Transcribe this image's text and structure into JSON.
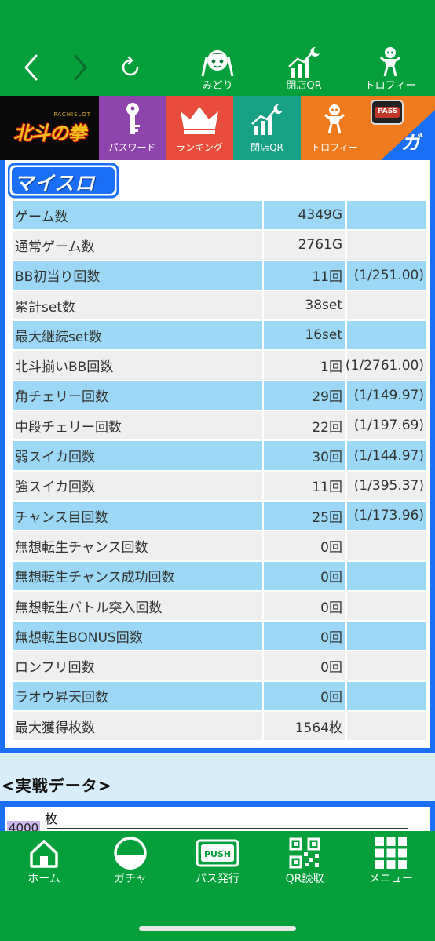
{
  "top_nav": {
    "items": [
      {
        "label": "みどり",
        "icon": "character-icon"
      },
      {
        "label": "閉店QR",
        "icon": "chart-moon-icon"
      },
      {
        "label": "トロフィー",
        "icon": "trophy-icon"
      }
    ]
  },
  "menu": {
    "banner_logo": "北斗の拳",
    "banner_sub": "PACHISLOT",
    "tiles": [
      {
        "label": "パスワード",
        "icon": "key-icon",
        "color": "#8e44ad"
      },
      {
        "label": "ランキング",
        "icon": "crown-icon",
        "color": "#e74c3c"
      },
      {
        "label": "閉店QR",
        "icon": "chart-moon-icon",
        "color": "#16a085"
      },
      {
        "label": "トロフィー",
        "icon": "trophy-icon",
        "color": "#f07a1e"
      }
    ],
    "pass_text": "PASS",
    "gachi_text": "ガチ"
  },
  "myslo_logo": "マイスロ",
  "stats": [
    {
      "label": "ゲーム数",
      "value": "4349G",
      "prob": ""
    },
    {
      "label": "通常ゲーム数",
      "value": "2761G",
      "prob": ""
    },
    {
      "label": "BB初当り回数",
      "value": "11回",
      "prob": "(1/251.00)"
    },
    {
      "label": "累計set数",
      "value": "38set",
      "prob": ""
    },
    {
      "label": "最大継続set数",
      "value": "16set",
      "prob": ""
    },
    {
      "label": "北斗揃いBB回数",
      "value": "1回",
      "prob": "(1/2761.00)"
    },
    {
      "label": "角チェリー回数",
      "value": "29回",
      "prob": "(1/149.97)"
    },
    {
      "label": "中段チェリー回数",
      "value": "22回",
      "prob": "(1/197.69)"
    },
    {
      "label": "弱スイカ回数",
      "value": "30回",
      "prob": "(1/144.97)"
    },
    {
      "label": "強スイカ回数",
      "value": "11回",
      "prob": "(1/395.37)"
    },
    {
      "label": "チャンス目回数",
      "value": "25回",
      "prob": "(1/173.96)"
    },
    {
      "label": "無想転生チャンス回数",
      "value": "0回",
      "prob": ""
    },
    {
      "label": "無想転生チャンス成功回数",
      "value": "0回",
      "prob": ""
    },
    {
      "label": "無想転生バトル突入回数",
      "value": "0回",
      "prob": ""
    },
    {
      "label": "無想転生BONUS回数",
      "value": "0回",
      "prob": ""
    },
    {
      "label": "ロンフリ回数",
      "value": "0回",
      "prob": ""
    },
    {
      "label": "ラオウ昇天回数",
      "value": "0回",
      "prob": ""
    },
    {
      "label": "最大獲得枚数",
      "value": "1564枚",
      "prob": ""
    }
  ],
  "section": {
    "title": "<実戦データ>",
    "chart_unit": "枚",
    "chart_top_tick": "4000"
  },
  "bottom_nav": {
    "items": [
      {
        "label": "ホーム",
        "icon": "home-icon"
      },
      {
        "label": "ガチャ",
        "icon": "gacha-ball-icon"
      },
      {
        "label": "パス発行",
        "icon": "push-pass-icon"
      },
      {
        "label": "QR読取",
        "icon": "qr-code-icon"
      },
      {
        "label": "メニュー",
        "icon": "grid-menu-icon"
      }
    ]
  },
  "colors": {
    "brand_green": "#05a03b",
    "frame_blue": "#1b6ff5",
    "row_blue": "#9cd7f5",
    "row_gray": "#efefef"
  }
}
